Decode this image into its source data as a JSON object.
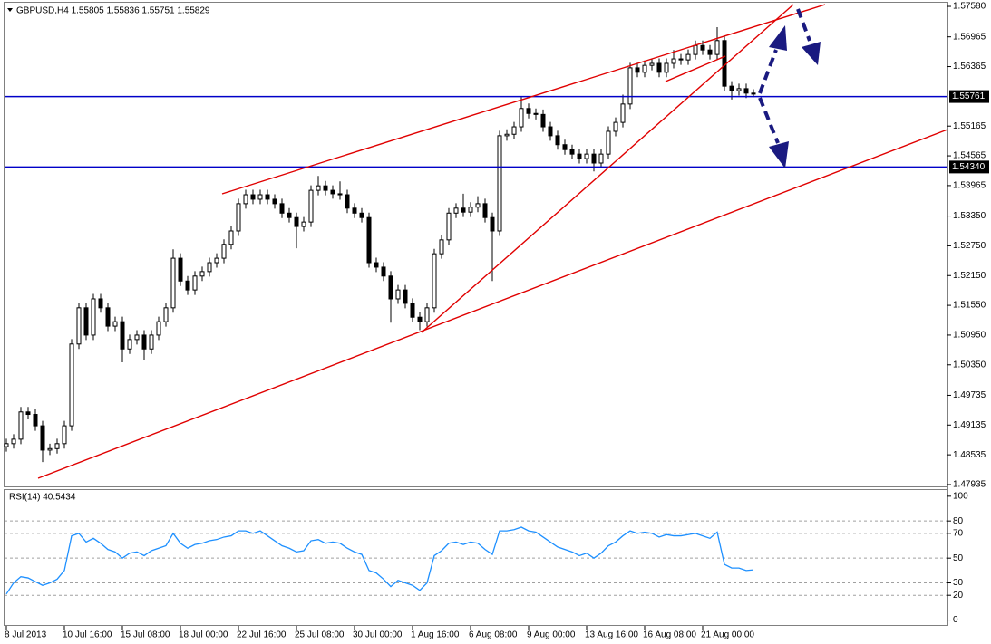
{
  "chart_data": [
    {
      "type": "candlestick",
      "title": "GBPUSD,H4 1.55805 1.55836 1.55751 1.55829",
      "categories": [
        "8 Jul 2013",
        null,
        null,
        null,
        null,
        null,
        null,
        null,
        "10 Jul 16:00",
        null,
        null,
        null,
        null,
        null,
        null,
        null,
        "15 Jul 08:00",
        null,
        null,
        null,
        null,
        null,
        null,
        null,
        "18 Jul 00:00",
        null,
        null,
        null,
        null,
        null,
        null,
        null,
        "22 Jul 16:00",
        null,
        null,
        null,
        null,
        null,
        null,
        null,
        "25 Jul 08:00",
        null,
        null,
        null,
        null,
        null,
        null,
        null,
        "30 Jul 00:00",
        null,
        null,
        null,
        null,
        null,
        null,
        null,
        "1 Aug 16:00",
        null,
        null,
        null,
        null,
        null,
        null,
        null,
        "6 Aug 08:00",
        null,
        null,
        null,
        null,
        null,
        null,
        null,
        "9 Aug 00:00",
        null,
        null,
        null,
        null,
        null,
        null,
        null,
        "13 Aug 16:00",
        null,
        null,
        null,
        null,
        null,
        null,
        null,
        "16 Aug 08:00",
        null,
        null,
        null,
        null,
        null,
        null,
        null,
        "21 Aug 00:00",
        null,
        null,
        null,
        null,
        null,
        null,
        null
      ],
      "open": [
        1.487,
        1.4876,
        1.4885,
        1.494,
        1.4935,
        1.4912,
        1.4863,
        1.4866,
        1.4876,
        1.4912,
        1.5077,
        1.515,
        1.5095,
        1.5168,
        1.515,
        1.5113,
        1.5122,
        1.5067,
        1.5086,
        1.5095,
        1.5067,
        1.5095,
        1.5122,
        1.515,
        1.525,
        1.5204,
        1.5186,
        1.5214,
        1.5223,
        1.5241,
        1.525,
        1.5278,
        1.5305,
        1.536,
        1.5378,
        1.5369,
        1.5378,
        1.5369,
        1.536,
        1.5341,
        1.5332,
        1.5314,
        1.5323,
        1.5387,
        1.5396,
        1.5387,
        1.538,
        1.5378,
        1.5351,
        1.5341,
        1.5332,
        1.5241,
        1.5232,
        1.5214,
        1.5168,
        1.5186,
        1.5159,
        1.5131,
        1.5122,
        1.515,
        1.5259,
        1.5287,
        1.5341,
        1.5351,
        1.5343,
        1.5353,
        1.536,
        1.5332,
        1.5305,
        1.5497,
        1.55,
        1.5515,
        1.5552,
        1.5542,
        1.554,
        1.5515,
        1.5497,
        1.5479,
        1.5469,
        1.546,
        1.5451,
        1.546,
        1.5442,
        1.546,
        1.5506,
        1.5524,
        1.5561,
        1.5634,
        1.5625,
        1.5639,
        1.5643,
        1.5625,
        1.5643,
        1.5652,
        1.565,
        1.5661,
        1.5679,
        1.567,
        1.5661,
        1.5689,
        1.5597,
        1.5588,
        1.5592,
        1.5583
      ],
      "high": [
        1.4886,
        1.4895,
        1.495,
        1.495,
        1.4945,
        1.4922,
        1.4876,
        1.4886,
        1.4922,
        1.5087,
        1.516,
        1.516,
        1.5178,
        1.5178,
        1.516,
        1.5132,
        1.5132,
        1.5096,
        1.5105,
        1.5105,
        1.5105,
        1.5132,
        1.516,
        1.5268,
        1.526,
        1.5214,
        1.5224,
        1.5233,
        1.5251,
        1.526,
        1.5288,
        1.5315,
        1.537,
        1.5388,
        1.5388,
        1.5388,
        1.5388,
        1.5379,
        1.537,
        1.5351,
        1.5342,
        1.5333,
        1.5397,
        1.5416,
        1.5406,
        1.5397,
        1.5405,
        1.5388,
        1.5361,
        1.5351,
        1.5342,
        1.5251,
        1.5242,
        1.5224,
        1.5196,
        1.5196,
        1.5169,
        1.5141,
        1.516,
        1.5269,
        1.5297,
        1.5351,
        1.5361,
        1.538,
        1.5363,
        1.5375,
        1.537,
        1.5342,
        1.5507,
        1.551,
        1.5525,
        1.5575,
        1.5562,
        1.5552,
        1.555,
        1.5525,
        1.5507,
        1.5489,
        1.5479,
        1.547,
        1.547,
        1.547,
        1.547,
        1.5516,
        1.5534,
        1.558,
        1.5644,
        1.5644,
        1.5649,
        1.5653,
        1.5653,
        1.5653,
        1.567,
        1.5662,
        1.5671,
        1.5689,
        1.5689,
        1.568,
        1.5716,
        1.5699,
        1.5607,
        1.5602,
        1.5602,
        1.5591
      ],
      "low": [
        1.486,
        1.4866,
        1.4875,
        1.4925,
        1.4902,
        1.4839,
        1.4853,
        1.4856,
        1.4866,
        1.4902,
        1.5067,
        1.5085,
        1.5085,
        1.514,
        1.5103,
        1.5103,
        1.504,
        1.5057,
        1.5076,
        1.5045,
        1.5057,
        1.5085,
        1.5112,
        1.514,
        1.5194,
        1.5176,
        1.5176,
        1.5204,
        1.5213,
        1.5231,
        1.524,
        1.5268,
        1.5295,
        1.535,
        1.5359,
        1.5359,
        1.5359,
        1.535,
        1.5331,
        1.5322,
        1.527,
        1.5304,
        1.5313,
        1.5377,
        1.5377,
        1.537,
        1.5368,
        1.5341,
        1.5331,
        1.5322,
        1.5231,
        1.5222,
        1.5204,
        1.512,
        1.5158,
        1.5149,
        1.5121,
        1.5105,
        1.5112,
        1.514,
        1.5249,
        1.5277,
        1.5331,
        1.5333,
        1.5333,
        1.5343,
        1.5322,
        1.5204,
        1.5295,
        1.5487,
        1.549,
        1.5505,
        1.5532,
        1.553,
        1.5505,
        1.5487,
        1.5469,
        1.5459,
        1.545,
        1.5441,
        1.5441,
        1.5425,
        1.5432,
        1.545,
        1.5496,
        1.5514,
        1.5551,
        1.5615,
        1.5615,
        1.5629,
        1.5615,
        1.5615,
        1.5633,
        1.564,
        1.564,
        1.5651,
        1.566,
        1.5651,
        1.5651,
        1.5587,
        1.557,
        1.5578,
        1.5573,
        1.5575
      ],
      "close": [
        1.4876,
        1.4885,
        1.494,
        1.4935,
        1.4912,
        1.4863,
        1.4866,
        1.4876,
        1.4912,
        1.5077,
        1.515,
        1.5095,
        1.5168,
        1.515,
        1.5113,
        1.5122,
        1.5067,
        1.5086,
        1.5095,
        1.5067,
        1.5095,
        1.5122,
        1.515,
        1.525,
        1.5204,
        1.5186,
        1.5214,
        1.5223,
        1.5241,
        1.525,
        1.5278,
        1.5305,
        1.536,
        1.5378,
        1.5369,
        1.5378,
        1.5369,
        1.536,
        1.5341,
        1.5332,
        1.5314,
        1.5323,
        1.5387,
        1.5396,
        1.5387,
        1.538,
        1.5378,
        1.5351,
        1.5341,
        1.5332,
        1.5241,
        1.5232,
        1.5214,
        1.5168,
        1.5186,
        1.5159,
        1.5131,
        1.5122,
        1.515,
        1.5259,
        1.5287,
        1.5341,
        1.5351,
        1.5343,
        1.5353,
        1.536,
        1.5332,
        1.5305,
        1.5497,
        1.55,
        1.5515,
        1.5552,
        1.5542,
        1.554,
        1.5515,
        1.5497,
        1.5479,
        1.5469,
        1.546,
        1.5451,
        1.546,
        1.5442,
        1.546,
        1.5506,
        1.5524,
        1.5561,
        1.5634,
        1.5625,
        1.5639,
        1.5643,
        1.5625,
        1.5643,
        1.5652,
        1.565,
        1.5661,
        1.5679,
        1.567,
        1.5661,
        1.5689,
        1.5597,
        1.5588,
        1.5592,
        1.5583,
        1.5581
      ],
      "ylim": [
        1.47898,
        1.57617
      ],
      "yticks": [
        {
          "value": 1.5758,
          "label": "1.57580"
        },
        1.56965,
        1.56365,
        1.55165,
        1.54565,
        1.53965,
        {
          "value": 1.5335,
          "label": "1.53350"
        },
        {
          "value": 1.5275,
          "label": "1.52750"
        },
        {
          "value": 1.5215,
          "label": "1.52150"
        },
        {
          "value": 1.5155,
          "label": "1.51550"
        },
        {
          "value": 1.5095,
          "label": "1.50950"
        },
        {
          "value": 1.5035,
          "label": "1.50350"
        },
        1.49735,
        1.49135,
        1.48535,
        1.47935
      ],
      "levels": [
        1.55761,
        {
          "value": 1.5434,
          "label": "1.54340"
        }
      ],
      "level_color": "#0000c8"
    },
    {
      "type": "line",
      "title": "RSI(14) 40.5434",
      "color": "#1e90ff",
      "values": [
        21,
        30,
        35,
        34,
        31,
        28,
        30,
        33,
        40,
        68,
        70,
        63,
        66,
        62,
        57,
        55,
        50,
        54,
        55,
        52,
        56,
        58,
        60,
        70,
        62,
        58,
        61,
        62,
        64,
        65,
        67,
        68,
        72,
        72,
        70,
        72,
        68,
        64,
        60,
        58,
        55,
        56,
        64,
        65,
        62,
        63,
        62,
        58,
        55,
        53,
        40,
        38,
        33,
        27,
        32,
        30,
        28,
        24,
        30,
        52,
        56,
        62,
        63,
        61,
        63,
        62,
        57,
        53,
        72,
        72,
        73,
        75,
        72,
        71,
        67,
        63,
        59,
        57,
        55,
        52,
        54,
        50,
        54,
        60,
        63,
        68,
        72,
        70,
        71,
        70,
        67,
        69,
        68,
        68,
        69,
        70,
        68,
        66,
        71,
        45,
        42,
        42,
        40,
        40.5434
      ],
      "ylim": [
        -4,
        105
      ],
      "yticks": [
        100,
        80,
        70,
        50,
        30,
        20,
        0
      ],
      "levels": [
        80,
        70,
        50,
        30,
        20
      ]
    }
  ]
}
